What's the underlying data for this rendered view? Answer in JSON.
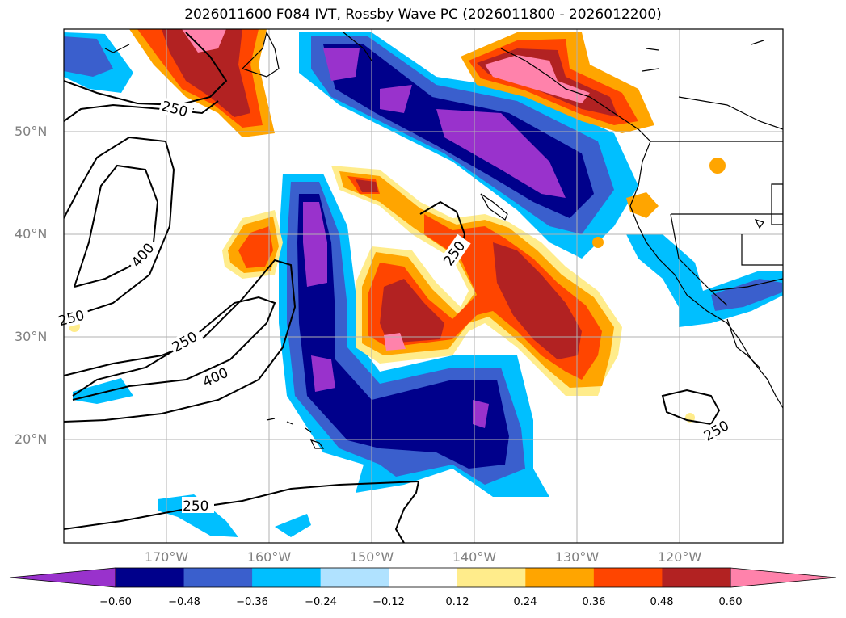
{
  "title": "2026011600 F084 IVT, Rossby Wave PC (2026011800 - 2026012200)",
  "map": {
    "projection": "PlateCarree",
    "lon_range": [
      -180,
      -110
    ],
    "lat_range": [
      10,
      60
    ],
    "gridlines": true,
    "lat_labels": [
      "50°N",
      "40°N",
      "30°N",
      "20°N"
    ],
    "lon_labels": [
      "170°W",
      "160°W",
      "150°W",
      "140°W",
      "130°W",
      "120°W"
    ],
    "contour_labels": [
      "250",
      "400",
      "250",
      "250",
      "400",
      "250",
      "250",
      "250"
    ]
  },
  "colorbar": {
    "colors": [
      "#9932CC",
      "#00008B",
      "#3A5FCD",
      "#00BFFF",
      "#B0E2FF",
      "#FFFFFF",
      "#FFEC8B",
      "#FFA500",
      "#FF4500",
      "#B22222",
      "#FF82AB"
    ],
    "ticks": [
      "−0.60",
      "−0.48",
      "−0.36",
      "−0.24",
      "−0.12",
      "0.12",
      "0.24",
      "0.36",
      "0.48",
      "0.60"
    ],
    "extend": "both"
  }
}
